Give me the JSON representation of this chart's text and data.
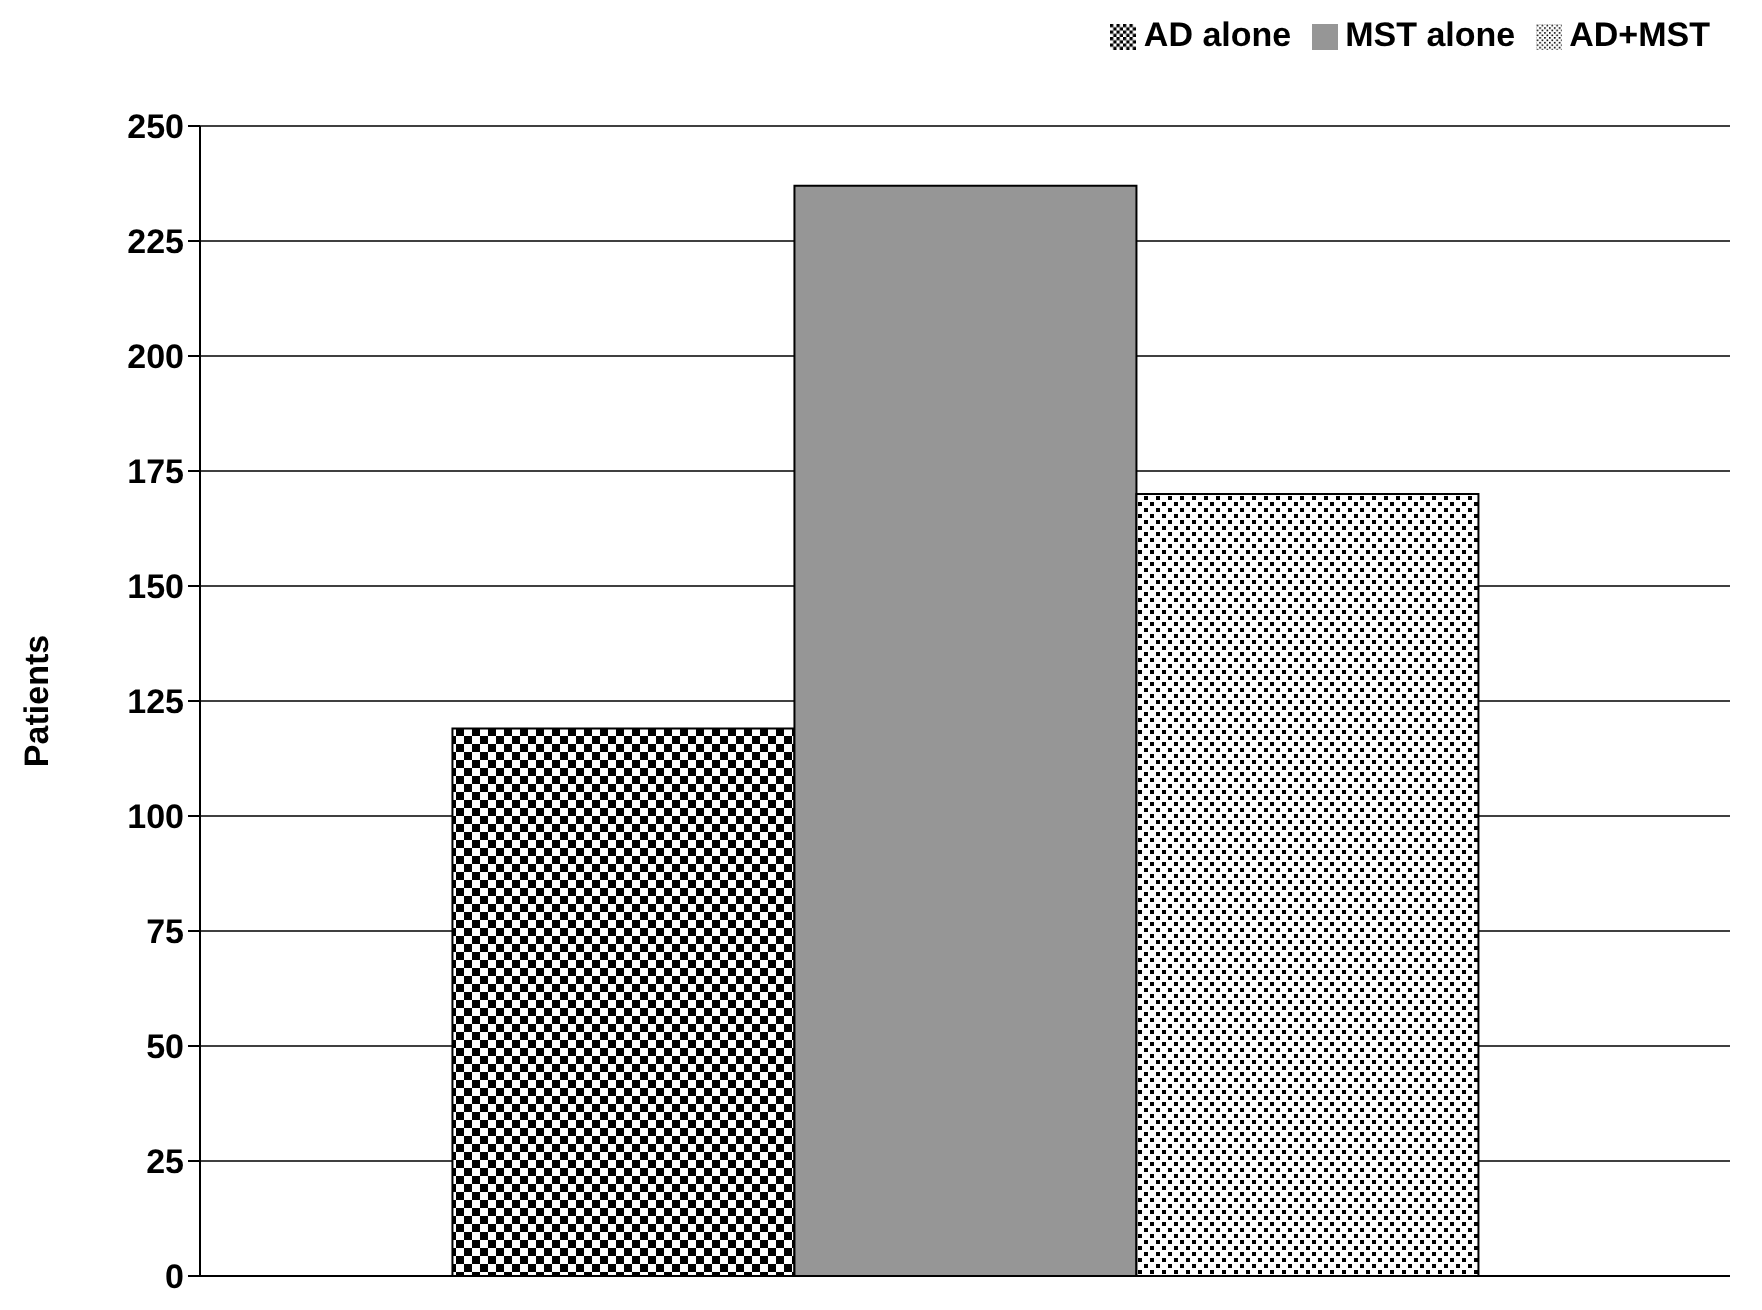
{
  "chart_data": {
    "type": "bar",
    "ylabel": "Patients",
    "categories": [
      null
    ],
    "series": [
      {
        "name": "AD alone",
        "color": "#000000",
        "values": [
          119
        ]
      },
      {
        "name": "MST alone",
        "color": "#969696",
        "values": [
          237
        ]
      },
      {
        "name": "AD+MST",
        "color": "#000000",
        "values": [
          170
        ]
      }
    ],
    "ylim": [
      0,
      250
    ],
    "yticks": [
      0,
      25,
      50,
      75,
      100,
      125,
      150,
      175,
      200,
      225,
      250
    ],
    "grid": "y",
    "legend": "top right"
  }
}
